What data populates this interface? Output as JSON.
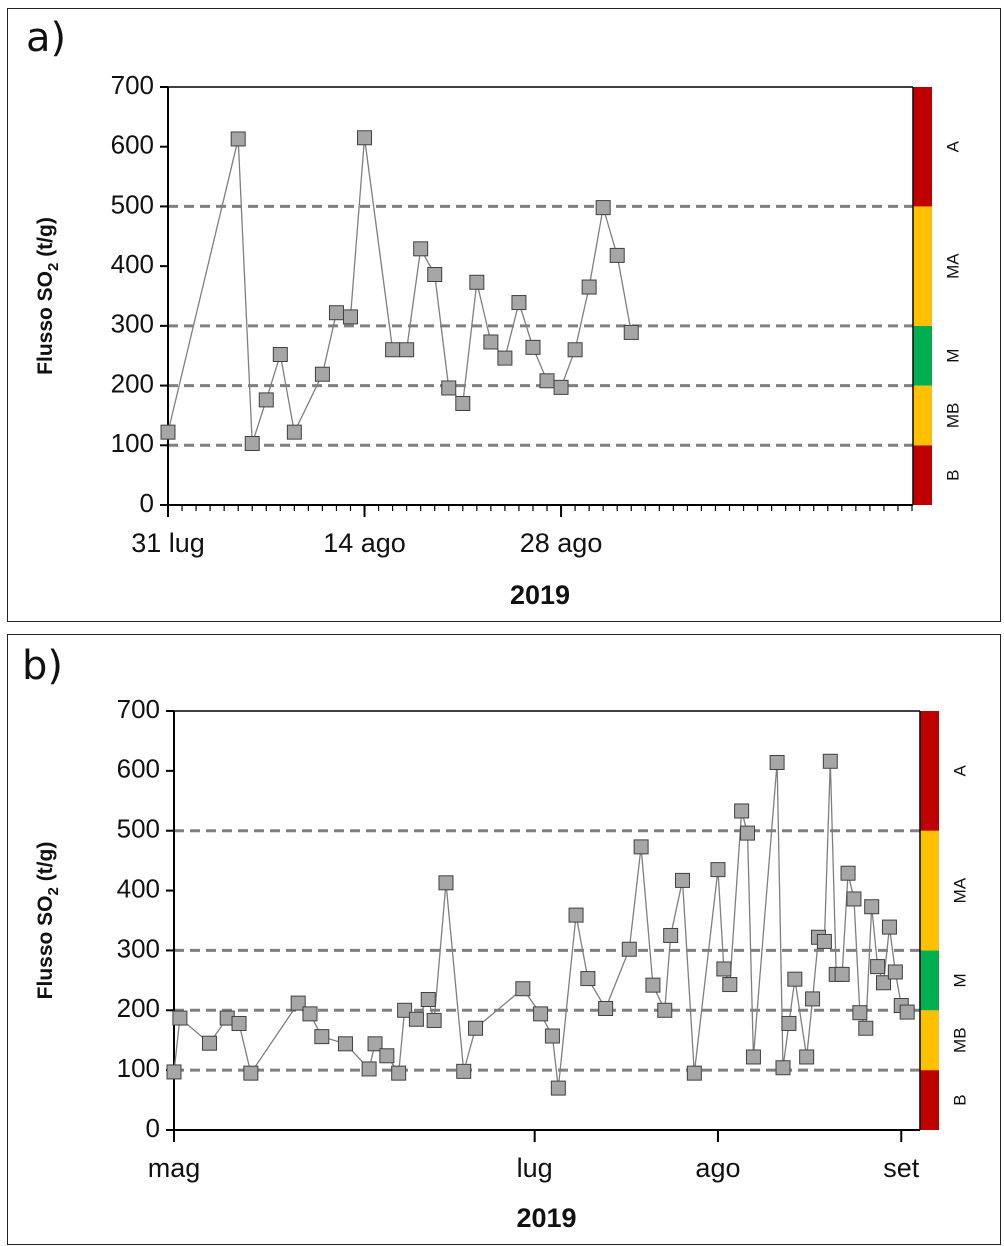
{
  "colors": {
    "red": "#c00000",
    "yellow": "#ffc000",
    "green": "#00b050",
    "marker": "#a6a6a6",
    "line": "#7f7f7f",
    "ref": "#808080"
  },
  "chart_data": [
    {
      "type": "line",
      "panel_label": "a)",
      "xlabel": "2019",
      "ylabel": "Flusso SO₂ (t/g)",
      "ylabel_main": "Flusso SO",
      "ylabel_sub": "2",
      "ylabel_tail": " (t/g)",
      "ylim": [
        0,
        700
      ],
      "yticks": [
        "0",
        "100",
        "200",
        "300",
        "400",
        "500",
        "600",
        "700"
      ],
      "xlim": [
        "2019-07-31",
        "2019-09-22"
      ],
      "xticks": [
        {
          "date": "2019-07-31",
          "label": "31 lug"
        },
        {
          "date": "2019-08-14",
          "label": "14 ago"
        },
        {
          "date": "2019-08-28",
          "label": "28 ago"
        }
      ],
      "minor_tick_days": 1,
      "reference_lines": [
        100,
        200,
        300,
        500
      ],
      "bands": [
        {
          "label": "B",
          "from": 0,
          "to": 100,
          "color": "red"
        },
        {
          "label": "MB",
          "from": 100,
          "to": 200,
          "color": "yellow"
        },
        {
          "label": "M",
          "from": 200,
          "to": 300,
          "color": "green"
        },
        {
          "label": "MA",
          "from": 300,
          "to": 500,
          "color": "yellow"
        },
        {
          "label": "A",
          "from": 500,
          "to": 700,
          "color": "red"
        }
      ],
      "series": [
        {
          "x": [
            "2019-07-31",
            "2019-08-05",
            "2019-08-06",
            "2019-08-07",
            "2019-08-08",
            "2019-08-09",
            "2019-08-11",
            "2019-08-12",
            "2019-08-13",
            "2019-08-14",
            "2019-08-16",
            "2019-08-17",
            "2019-08-18",
            "2019-08-19",
            "2019-08-20",
            "2019-08-21",
            "2019-08-22",
            "2019-08-23",
            "2019-08-24",
            "2019-08-25",
            "2019-08-26",
            "2019-08-27",
            "2019-08-28",
            "2019-08-29",
            "2019-08-30",
            "2019-08-31",
            "2019-09-01",
            "2019-09-02"
          ],
          "y": [
            122,
            613,
            103,
            176,
            252,
            122,
            219,
            322,
            315,
            615,
            260,
            260,
            429,
            386,
            196,
            170,
            373,
            273,
            246,
            339,
            264,
            208,
            197,
            260,
            365,
            498,
            418,
            289
          ]
        }
      ]
    },
    {
      "type": "line",
      "panel_label": "b)",
      "xlabel": "2019",
      "ylabel": "Flusso SO₂ (t/g)",
      "ylabel_main": "Flusso SO",
      "ylabel_sub": "2",
      "ylabel_tail": " (t/g)",
      "ylim": [
        0,
        700
      ],
      "yticks": [
        "0",
        "100",
        "200",
        "300",
        "400",
        "500",
        "600",
        "700"
      ],
      "xlim": [
        "2019-05-01",
        "2019-09-04"
      ],
      "xticks": [
        {
          "date": "2019-05-01",
          "label": "mag"
        },
        {
          "date": "2019-07-01",
          "label": "lug"
        },
        {
          "date": "2019-08-01",
          "label": "ago"
        },
        {
          "date": "2019-09-01",
          "label": "set"
        }
      ],
      "reference_lines": [
        100,
        200,
        300,
        500
      ],
      "bands": [
        {
          "label": "B",
          "from": 0,
          "to": 100,
          "color": "red"
        },
        {
          "label": "MB",
          "from": 100,
          "to": 200,
          "color": "yellow"
        },
        {
          "label": "M",
          "from": 200,
          "to": 300,
          "color": "green"
        },
        {
          "label": "MA",
          "from": 300,
          "to": 500,
          "color": "yellow"
        },
        {
          "label": "A",
          "from": 500,
          "to": 700,
          "color": "red"
        }
      ],
      "series": [
        {
          "x": [
            "2019-05-01",
            "2019-05-02",
            "2019-05-07",
            "2019-05-10",
            "2019-05-12",
            "2019-05-14",
            "2019-05-22",
            "2019-05-24",
            "2019-05-26",
            "2019-05-30",
            "2019-06-03",
            "2019-06-04",
            "2019-06-06",
            "2019-06-08",
            "2019-06-09",
            "2019-06-11",
            "2019-06-13",
            "2019-06-14",
            "2019-06-16",
            "2019-06-19",
            "2019-06-21",
            "2019-06-29",
            "2019-07-02",
            "2019-07-04",
            "2019-07-05",
            "2019-07-08",
            "2019-07-10",
            "2019-07-13",
            "2019-07-17",
            "2019-07-19",
            "2019-07-21",
            "2019-07-23",
            "2019-07-24",
            "2019-07-26",
            "2019-07-28",
            "2019-08-01",
            "2019-08-02",
            "2019-08-03",
            "2019-08-05",
            "2019-08-06",
            "2019-08-07",
            "2019-08-11",
            "2019-08-12",
            "2019-08-13",
            "2019-08-14",
            "2019-08-16",
            "2019-08-17",
            "2019-08-18",
            "2019-08-19",
            "2019-08-20",
            "2019-08-21",
            "2019-08-22",
            "2019-08-23",
            "2019-08-24",
            "2019-08-25",
            "2019-08-26",
            "2019-08-27",
            "2019-08-28",
            "2019-08-29",
            "2019-08-30",
            "2019-08-31",
            "2019-09-01",
            "2019-09-02"
          ],
          "y": [
            97,
            187,
            145,
            187,
            178,
            95,
            212,
            194,
            156,
            144,
            102,
            144,
            124,
            95,
            200,
            185,
            218,
            183,
            413,
            98,
            170,
            236,
            194,
            157,
            70,
            359,
            253,
            203,
            302,
            473,
            242,
            200,
            325,
            417,
            95,
            435,
            269,
            243,
            533,
            496,
            122,
            614,
            104,
            178,
            252,
            122,
            219,
            322,
            315,
            616,
            260,
            260,
            429,
            386,
            196,
            170,
            373,
            273,
            246,
            339,
            264,
            208,
            197
          ]
        }
      ]
    }
  ]
}
